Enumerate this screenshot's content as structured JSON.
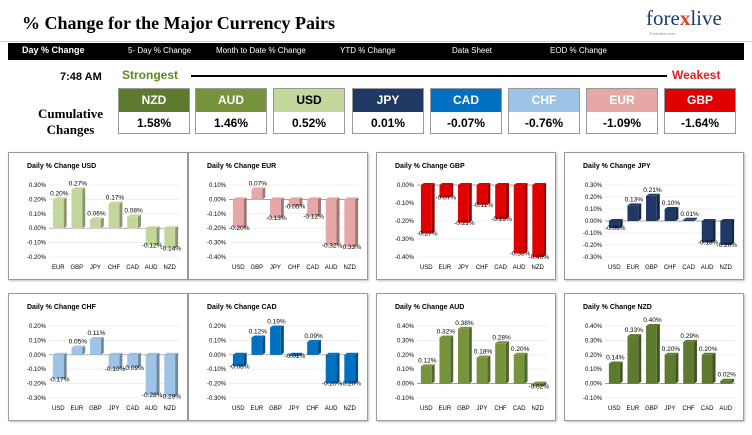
{
  "header": {
    "title": "% Change for the Major Currency Pairs",
    "logo_prefix": "fore",
    "logo_x": "x",
    "logo_suffix": "live",
    "logo_tagline": "Forexlive.com"
  },
  "tabs": [
    {
      "label": "Day % Change",
      "active": true
    },
    {
      "label": "5- Day % Change",
      "active": false
    },
    {
      "label": "Month to Date % Change",
      "active": false
    },
    {
      "label": "YTD % Change",
      "active": false
    },
    {
      "label": "Data Sheet",
      "active": false
    },
    {
      "label": "EOD % Change",
      "active": false
    }
  ],
  "summary": {
    "time": "7:48 AM",
    "strongest_label": "Strongest",
    "weakest_label": "Weakest",
    "cumulative_line1": "Cumulative",
    "cumulative_line2": "Changes",
    "currencies": [
      {
        "code": "NZD",
        "value": "1.58%",
        "color": "#5d7a2e"
      },
      {
        "code": "AUD",
        "value": "1.46%",
        "color": "#77933c"
      },
      {
        "code": "USD",
        "value": "0.52%",
        "color": "#c3d69b"
      },
      {
        "code": "JPY",
        "value": "0.01%",
        "color": "#1f3864"
      },
      {
        "code": "CAD",
        "value": "-0.07%",
        "color": "#0070c0"
      },
      {
        "code": "CHF",
        "value": "-0.76%",
        "color": "#9dc3e6"
      },
      {
        "code": "EUR",
        "value": "-1.09%",
        "color": "#e6a7a7"
      },
      {
        "code": "GBP",
        "value": "-1.64%",
        "color": "#e00000"
      }
    ]
  },
  "chart_data": [
    {
      "type": "bar",
      "title": "Daily % Change USD",
      "categories": [
        "EUR",
        "GBP",
        "JPY",
        "CHF",
        "CAD",
        "AUD",
        "NZD"
      ],
      "values": [
        0.2,
        0.27,
        0.06,
        0.17,
        0.08,
        -0.12,
        -0.14
      ],
      "value_labels": [
        "0.20%",
        "0.27%",
        "0.06%",
        "0.17%",
        "0.08%",
        "-0.12%",
        "-0.14%"
      ],
      "ylim": [
        -0.2,
        0.3
      ],
      "ticks": [
        "0.30%",
        "0.20%",
        "0.10%",
        "0.00%",
        "-0.10%",
        "-0.20%"
      ],
      "color": "#c3d69b"
    },
    {
      "type": "bar",
      "title": "Daily % Change EUR",
      "categories": [
        "USD",
        "GBP",
        "JPY",
        "CHF",
        "CAD",
        "AUD",
        "NZD"
      ],
      "values": [
        -0.2,
        0.07,
        -0.13,
        -0.05,
        -0.12,
        -0.32,
        -0.33
      ],
      "value_labels": [
        "-0.20%",
        "0.07%",
        "-0.13%",
        "-0.05%",
        "-0.12%",
        "-0.32%",
        "-0.33%"
      ],
      "ylim": [
        -0.4,
        0.1
      ],
      "ticks": [
        "0.10%",
        "0.00%",
        "-0.10%",
        "-0.20%",
        "-0.30%",
        "-0.40%"
      ],
      "color": "#e6a7a7"
    },
    {
      "type": "bar",
      "title": "Daily % Change GBP",
      "categories": [
        "USD",
        "EUR",
        "JPY",
        "CHF",
        "CAD",
        "AUD",
        "NZD"
      ],
      "values": [
        -0.27,
        -0.07,
        -0.21,
        -0.11,
        -0.19,
        -0.38,
        -0.4
      ],
      "value_labels": [
        "-0.27%",
        "-0.07%",
        "-0.21%",
        "-0.11%",
        "-0.19%",
        "-0.38%",
        "-0.40%"
      ],
      "ylim": [
        -0.4,
        0.0
      ],
      "ticks": [
        "0.00%",
        "-0.10%",
        "-0.20%",
        "-0.30%",
        "-0.40%"
      ],
      "color": "#e00000"
    },
    {
      "type": "bar",
      "title": "Daily % Change JPY",
      "categories": [
        "USD",
        "EUR",
        "GBP",
        "CHF",
        "CAD",
        "AUD",
        "NZD"
      ],
      "values": [
        -0.06,
        0.13,
        0.21,
        0.1,
        0.01,
        -0.18,
        -0.2
      ],
      "value_labels": [
        "-0.06%",
        "0.13%",
        "0.21%",
        "0.10%",
        "0.01%",
        "-0.18%",
        "-0.20%"
      ],
      "ylim": [
        -0.3,
        0.3
      ],
      "ticks": [
        "0.30%",
        "0.20%",
        "0.10%",
        "0.00%",
        "-0.10%",
        "-0.20%",
        "-0.30%"
      ],
      "color": "#1f3864"
    },
    {
      "type": "bar",
      "title": "Daily % Change CHF",
      "categories": [
        "USD",
        "EUR",
        "GBP",
        "JPY",
        "CAD",
        "AUD",
        "NZD"
      ],
      "values": [
        -0.17,
        0.05,
        0.11,
        -0.1,
        -0.09,
        -0.28,
        -0.29
      ],
      "value_labels": [
        "-0.17%",
        "0.05%",
        "0.11%",
        "-0.10%",
        "-0.09%",
        "-0.28%",
        "-0.29%"
      ],
      "ylim": [
        -0.3,
        0.2
      ],
      "ticks": [
        "0.20%",
        "0.10%",
        "0.00%",
        "-0.10%",
        "-0.20%",
        "-0.30%"
      ],
      "color": "#9dc3e6"
    },
    {
      "type": "bar",
      "title": "Daily % Change CAD",
      "categories": [
        "USD",
        "EUR",
        "GBP",
        "JPY",
        "CHF",
        "AUD",
        "NZD"
      ],
      "values": [
        -0.08,
        0.12,
        0.19,
        -0.01,
        0.09,
        -0.2,
        -0.2
      ],
      "value_labels": [
        "-0.08%",
        "0.12%",
        "0.19%",
        "-0.01%",
        "0.09%",
        "-0.20%",
        "-0.20%"
      ],
      "ylim": [
        -0.3,
        0.2
      ],
      "ticks": [
        "0.20%",
        "0.10%",
        "0.00%",
        "-0.10%",
        "-0.20%",
        "-0.30%"
      ],
      "color": "#0070c0"
    },
    {
      "type": "bar",
      "title": "Daily % Change AUD",
      "categories": [
        "USD",
        "EUR",
        "GBP",
        "JPY",
        "CHF",
        "CAD",
        "NZD"
      ],
      "values": [
        0.12,
        0.32,
        0.38,
        0.18,
        0.28,
        0.2,
        -0.02
      ],
      "value_labels": [
        "0.12%",
        "0.32%",
        "0.38%",
        "0.18%",
        "0.28%",
        "0.20%",
        "-0.02%"
      ],
      "ylim": [
        -0.1,
        0.4
      ],
      "ticks": [
        "0.40%",
        "0.30%",
        "0.20%",
        "0.10%",
        "0.00%",
        "-0.10%"
      ],
      "color": "#77933c"
    },
    {
      "type": "bar",
      "title": "Daily % Change NZD",
      "categories": [
        "USD",
        "EUR",
        "GBP",
        "JPY",
        "CHF",
        "CAD",
        "AUD"
      ],
      "values": [
        0.14,
        0.33,
        0.4,
        0.2,
        0.29,
        0.2,
        0.02
      ],
      "value_labels": [
        "0.14%",
        "0.33%",
        "0.40%",
        "0.20%",
        "0.29%",
        "0.20%",
        "0.02%"
      ],
      "ylim": [
        -0.1,
        0.4
      ],
      "ticks": [
        "0.40%",
        "0.30%",
        "0.20%",
        "0.10%",
        "0.00%",
        "-0.10%"
      ],
      "color": "#5d7a2e"
    }
  ]
}
